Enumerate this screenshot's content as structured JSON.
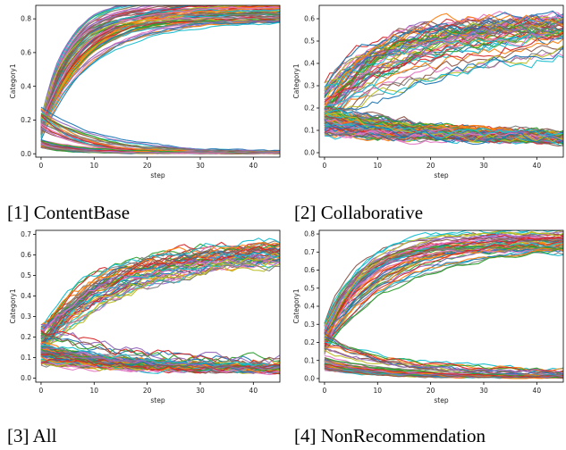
{
  "chart_data": [
    {
      "type": "line",
      "caption": "[1] ContentBase",
      "xlabel": "step",
      "ylabel": "Category1",
      "xlim": [
        -1,
        45
      ],
      "ylim": [
        -0.02,
        0.88
      ],
      "xticks": [
        0,
        10,
        20,
        30,
        40
      ],
      "yticks": [
        0.0,
        0.2,
        0.4,
        0.6,
        0.8
      ],
      "ytick_labels": [
        "0.0",
        "0.2",
        "0.4",
        "0.6",
        "0.8"
      ],
      "steps": 46,
      "groups": [
        {
          "start": 0.16,
          "end": 0.85,
          "k": 0.16,
          "count": 60,
          "noise": 0.006
        },
        {
          "start": 0.12,
          "end": 0.84,
          "k": 0.11,
          "count": 8,
          "noise": 0.006
        },
        {
          "start": 0.2,
          "end": 0.01,
          "k": 0.12,
          "count": 20,
          "noise": 0.004
        },
        {
          "start": 0.06,
          "end": 0.005,
          "k": 0.15,
          "count": 70,
          "noise": 0.003
        }
      ]
    },
    {
      "type": "line",
      "caption": "[2] Collaborative",
      "xlabel": "step",
      "ylabel": "Category1",
      "xlim": [
        -1,
        45
      ],
      "ylim": [
        -0.02,
        0.66
      ],
      "xticks": [
        0,
        10,
        20,
        30,
        40
      ],
      "yticks": [
        0.0,
        0.1,
        0.2,
        0.3,
        0.4,
        0.5,
        0.6
      ],
      "ytick_labels": [
        "0.0",
        "0.1",
        "0.2",
        "0.3",
        "0.4",
        "0.5",
        "0.6"
      ],
      "steps": 46,
      "groups": [
        {
          "start": 0.22,
          "end": 0.57,
          "k": 0.08,
          "count": 55,
          "noise": 0.02
        },
        {
          "start": 0.15,
          "end": 0.55,
          "k": 0.04,
          "count": 6,
          "noise": 0.02
        },
        {
          "start": 0.14,
          "end": 0.06,
          "k": 0.05,
          "count": 110,
          "noise": 0.015
        }
      ]
    },
    {
      "type": "line",
      "caption": "[3] All",
      "xlabel": "step",
      "ylabel": "Category1",
      "xlim": [
        -1,
        45
      ],
      "ylim": [
        -0.02,
        0.72
      ],
      "xticks": [
        0,
        10,
        20,
        30,
        40
      ],
      "yticks": [
        0.0,
        0.1,
        0.2,
        0.3,
        0.4,
        0.5,
        0.6,
        0.7
      ],
      "ytick_labels": [
        "0.0",
        "0.1",
        "0.2",
        "0.3",
        "0.4",
        "0.5",
        "0.6",
        "0.7"
      ],
      "steps": 46,
      "groups": [
        {
          "start": 0.18,
          "end": 0.62,
          "k": 0.07,
          "count": 50,
          "noise": 0.018
        },
        {
          "start": 0.25,
          "end": 0.08,
          "k": 0.06,
          "count": 6,
          "noise": 0.02
        },
        {
          "start": 0.12,
          "end": 0.04,
          "k": 0.06,
          "count": 100,
          "noise": 0.012
        }
      ]
    },
    {
      "type": "line",
      "caption": "[4] NonRecommendation",
      "xlabel": "step",
      "ylabel": "Category1",
      "xlim": [
        -1,
        45
      ],
      "ylim": [
        -0.02,
        0.82
      ],
      "xticks": [
        0,
        10,
        20,
        30,
        40
      ],
      "yticks": [
        0.0,
        0.1,
        0.2,
        0.3,
        0.4,
        0.5,
        0.6,
        0.7,
        0.8
      ],
      "ytick_labels": [
        "0.0",
        "0.1",
        "0.2",
        "0.3",
        "0.4",
        "0.5",
        "0.6",
        "0.7",
        "0.8"
      ],
      "steps": 46,
      "groups": [
        {
          "start": 0.22,
          "end": 0.77,
          "k": 0.12,
          "count": 50,
          "noise": 0.01
        },
        {
          "start": 0.18,
          "end": 0.75,
          "k": 0.06,
          "count": 4,
          "noise": 0.01
        },
        {
          "start": 0.2,
          "end": 0.03,
          "k": 0.08,
          "count": 12,
          "noise": 0.01
        },
        {
          "start": 0.08,
          "end": 0.01,
          "k": 0.1,
          "count": 90,
          "noise": 0.005
        }
      ]
    }
  ],
  "palette": [
    "#1f77b4",
    "#ff7f0e",
    "#2ca02c",
    "#d62728",
    "#9467bd",
    "#8c564b",
    "#e377c2",
    "#7f7f7f",
    "#bcbd22",
    "#17becf"
  ]
}
